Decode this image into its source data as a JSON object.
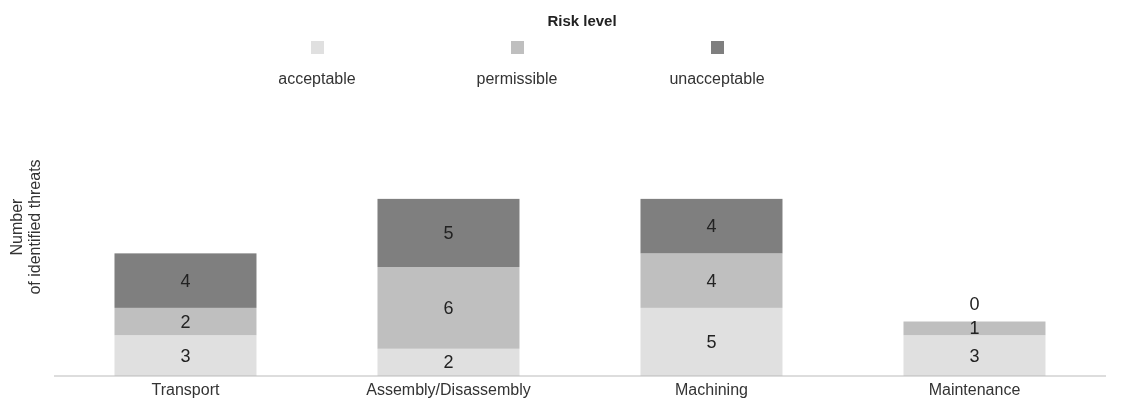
{
  "chart_data": {
    "type": "bar",
    "legend_title": "Risk level",
    "ylabel": "Number of identified threats",
    "categories": [
      "Transport",
      "Assembly/Disassembly",
      "Machining",
      "Maintenance"
    ],
    "stacked": true,
    "data_labels": true,
    "legend": "top",
    "grid": false,
    "tick_labels": "x",
    "series": [
      {
        "name": "acceptable",
        "color": "#e0e0e0",
        "values": [
          3,
          2,
          5,
          3
        ]
      },
      {
        "name": "permissible",
        "color": "#bfbfbf",
        "values": [
          2,
          6,
          4,
          1
        ]
      },
      {
        "name": "unacceptable",
        "color": "#7f7f7f",
        "values": [
          4,
          5,
          4,
          0
        ]
      }
    ]
  }
}
